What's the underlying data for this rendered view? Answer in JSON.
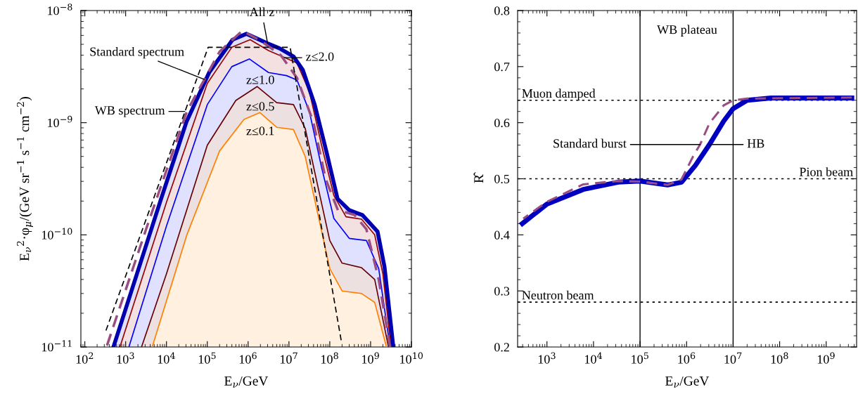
{
  "chart_data": [
    {
      "type": "area",
      "xlabel": "E$_{ν}$/GeV",
      "ylabel": "E$_{ν}$$^{2}$·φ$_{μ}$/(GeV sr$^{−1}$ s$^{−1}$ cm$^{−2}$)",
      "log": "xy",
      "xlim": [
        80,
        10000000000.0
      ],
      "ylim": [
        1e-11,
        1e-08
      ],
      "xticks": [
        {
          "value": 100,
          "label": "10$^{2}$"
        },
        {
          "value": 1000,
          "label": "10$^{3}$"
        },
        {
          "value": 10000.0,
          "label": "10$^{4}$"
        },
        {
          "value": 100000.0,
          "label": "10$^{5}$"
        },
        {
          "value": 1000000.0,
          "label": "10$^{6}$"
        },
        {
          "value": 10000000.0,
          "label": "10$^{7}$"
        },
        {
          "value": 100000000.0,
          "label": "10$^{8}$"
        },
        {
          "value": 1000000000.0,
          "label": "10$^{9}$"
        },
        {
          "value": 10000000000.0,
          "label": "10$^{10}$"
        }
      ],
      "yticks": [
        {
          "value": 1e-11,
          "label": "10$^{−11}$"
        },
        {
          "value": 1e-10,
          "label": "10$^{−10}$"
        },
        {
          "value": 1e-09,
          "label": "10$^{−9}$"
        },
        {
          "value": 1e-08,
          "label": "10$^{−8}$"
        }
      ],
      "grid": false,
      "marker": "none",
      "series": [
        {
          "color": "#0000b0",
          "line_style": "solid",
          "x": [
            501,
            7080,
            30900,
            112000.0,
            417000.0,
            910000.0,
            3000000.0,
            5900000.0,
            12900000.0,
            21900000.0,
            42700000.0,
            83000000.0,
            155000000.0,
            300000000.0,
            630000000.0,
            1480000000.0,
            2190000000.0,
            3600000000.0
          ],
          "values": [
            1e-11,
            2e-10,
            1.02e-09,
            2.82e-09,
            5.5e-09,
            6.2e-09,
            5.1e-09,
            4.6e-09,
            3.9e-09,
            2.95e-09,
            1.45e-09,
            5.5e-10,
            2.1e-10,
            1.66e-10,
            1.5e-10,
            1.07e-10,
            5.2e-11,
            1e-11
          ]
        },
        {
          "color": "#990000",
          "line_style": "solid",
          "x": [
            724,
            10000.0,
            100000.0,
            398000.0,
            1120000.0,
            3160000.0,
            7900000.0,
            15800000.0,
            31600000.0,
            63000000.0,
            126000000.0,
            250000000.0,
            600000000.0,
            1260000000.0,
            2000000000.0,
            3160000000.0
          ],
          "values": [
            1e-11,
            1.95e-10,
            2.24e-09,
            4.7e-09,
            5.5e-09,
            4.4e-09,
            3.8e-09,
            3.4e-09,
            1.9e-09,
            6.3e-10,
            2.24e-10,
            1.45e-10,
            1.38e-10,
            1e-10,
            4.5e-11,
            1e-11
          ]
        },
        {
          "color": "#0000ff",
          "line_style": "solid",
          "x": [
            1200,
            10000.0,
            100000.0,
            398000.0,
            1070000.0,
            3160000.0,
            8700000.0,
            15800000.0,
            31600000.0,
            63000000.0,
            126000000.0,
            300000000.0,
            790000000.0,
            1580000000.0,
            3000000000.0
          ],
          "values": [
            1e-11,
            1.2e-10,
            1.45e-09,
            3.16e-09,
            3.7e-09,
            2.8e-09,
            2.63e-09,
            2.4e-09,
            1.26e-09,
            4e-10,
            1.4e-10,
            9.3e-11,
            8.9e-11,
            5e-11,
            1e-11
          ]
        },
        {
          "color": "#660000",
          "line_style": "solid",
          "x": [
            2450,
            10000.0,
            100000.0,
            500000.0,
            1660000.0,
            5000000.0,
            12900000.0,
            25000000.0,
            50000000.0,
            100000000.0,
            200000000.0,
            600000000.0,
            1260000000.0,
            2750000000.0
          ],
          "values": [
            1e-11,
            4.5e-11,
            6.3e-10,
            1.58e-09,
            2.1e-09,
            1.51e-09,
            1.45e-09,
            8.9e-10,
            2.8e-10,
            8.9e-11,
            5.6e-11,
            5.1e-11,
            4e-11,
            1e-11
          ]
        },
        {
          "color": "#ff8000",
          "line_style": "solid",
          "x": [
            4470,
            31600.0,
            200000.0,
            790000.0,
            1950000.0,
            5000000.0,
            12900000.0,
            25000000.0,
            50000000.0,
            100000000.0,
            200000000.0,
            600000000.0,
            1260000000.0,
            2450000000.0
          ],
          "values": [
            1e-11,
            1e-10,
            5.6e-10,
            1.07e-09,
            1.23e-09,
            9.1e-10,
            8.7e-10,
            5e-10,
            1.58e-10,
            5e-11,
            3.16e-11,
            3e-11,
            2.5e-11,
            1e-11
          ]
        },
        {
          "type": "line",
          "color": "#994d80",
          "line_style": "dashed",
          "x": [
            339,
            3160,
            31600.0,
            200000.0,
            720000.0,
            2000000.0,
            6300000.0,
            15800000.0,
            40000000.0,
            79000000.0,
            158000000.0,
            400000000.0,
            790000000.0,
            1580000000.0,
            3000000000.0
          ],
          "values": [
            1e-11,
            1.12e-10,
            1.26e-09,
            4.3e-09,
            6.6e-09,
            5.4e-09,
            4e-09,
            2.5e-09,
            1e-09,
            3.16e-10,
            1.66e-10,
            1.51e-10,
            1.12e-10,
            4e-11,
            1e-11
          ]
        },
        {
          "type": "line",
          "color": "#000000",
          "line_style": "dashed",
          "x": [
            324,
            105000.0,
            10700000.0,
            190000000.0
          ],
          "values": [
            1.38e-11,
            4.7e-09,
            4.7e-09,
            1.15e-11
          ]
        }
      ],
      "annotations": [
        {
          "text": "All z",
          "x": 3000000.0,
          "y": 5.1e-09
        },
        {
          "text": "Standard spectrum",
          "x": 85000.0,
          "y": 2.43e-09
        },
        {
          "text": "WB spectrum",
          "x": 28000.0,
          "y": 1.26e-09
        },
        {
          "text": "z≤2.0",
          "x": 7900000.0,
          "y": 3.8e-09
        },
        "z≤1.0",
        "z≤0.5",
        "z≤0.1"
      ]
    },
    {
      "type": "line",
      "xlabel": "E$_{ν}$/GeV",
      "ylabel": "R̂",
      "log": "x",
      "xlim": [
        234,
        4500000000.0
      ],
      "ylim": [
        0.2,
        0.8
      ],
      "xticks": [
        {
          "value": 1000,
          "label": "10$^{3}$"
        },
        {
          "value": 10000.0,
          "label": "10$^{4}$"
        },
        {
          "value": 100000.0,
          "label": "10$^{5}$"
        },
        {
          "value": 1000000.0,
          "label": "10$^{6}$"
        },
        {
          "value": 10000000.0,
          "label": "10$^{7}$"
        },
        {
          "value": 100000000.0,
          "label": "10$^{8}$"
        },
        {
          "value": 1000000000.0,
          "label": "10$^{9}$"
        }
      ],
      "yticks": [
        0.2,
        0.3,
        0.4,
        0.5,
        0.6,
        0.7,
        0.8
      ],
      "grid": false,
      "marker": "none",
      "series": [
        {
          "color": "#0000c0",
          "line_style": "solid",
          "x": [
            295,
            1000,
            6030,
            33900.0,
            100000.0,
            390000.0,
            780000.0,
            1550000.0,
            3100000.0,
            6300000.0,
            10000000.0,
            20000000.0,
            65000000.0,
            3550000000.0
          ],
          "values": [
            0.42,
            0.455,
            0.481,
            0.494,
            0.496,
            0.489,
            0.494,
            0.524,
            0.561,
            0.603,
            0.625,
            0.64,
            0.644,
            0.644
          ]
        },
        {
          "color": "#994d80",
          "line_style": "dashed",
          "x": [
            309,
            1000,
            6030,
            33900.0,
            100000.0,
            390000.0,
            780000.0,
            1380000.0,
            1950000.0,
            3100000.0,
            6300000.0,
            10000000.0,
            20000000.0,
            3550000000.0
          ],
          "values": [
            0.429,
            0.459,
            0.49,
            0.496,
            0.495,
            0.489,
            0.499,
            0.54,
            0.561,
            0.599,
            0.631,
            0.64,
            0.643,
            0.645
          ]
        }
      ],
      "ref_lines": [
        {
          "axis": "y",
          "value": 0.64,
          "label": "Muon damped",
          "line_style": "dotted",
          "color": "#000000"
        },
        {
          "axis": "y",
          "value": 0.5,
          "label": "Pion beam",
          "line_style": "dotted",
          "color": "#000000"
        },
        {
          "axis": "y",
          "value": 0.28,
          "label": "Neutron beam",
          "line_style": "dotted",
          "color": "#000000"
        },
        {
          "axis": "x",
          "value": 100000.0,
          "line_style": "solid",
          "color": "#000000"
        },
        {
          "axis": "x",
          "value": 10000000.0,
          "line_style": "solid",
          "color": "#000000"
        }
      ],
      "annotations": [
        "WB plateau",
        {
          "text": "Standard burst",
          "x": 1950000.0,
          "y": 0.561
        },
        {
          "text": "HB",
          "x": 3100000.0,
          "y": 0.561
        }
      ]
    }
  ]
}
